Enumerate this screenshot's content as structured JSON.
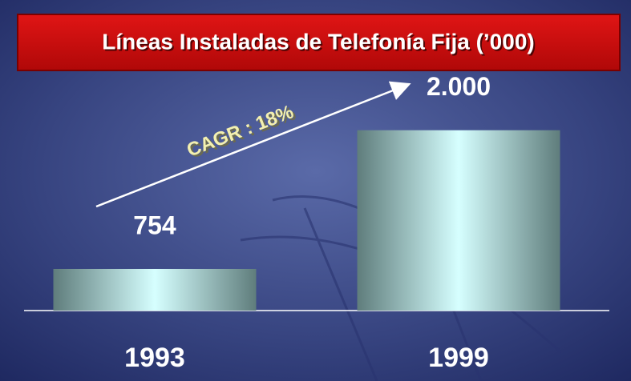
{
  "chart_data": {
    "type": "bar",
    "title": "Líneas Instaladas de Telefonía Fija (’000)",
    "annotation": "CAGR : 18%",
    "categories": [
      "1993",
      "1999"
    ],
    "values": [
      754,
      2000
    ],
    "value_labels": [
      "754",
      "2.000"
    ],
    "ylim": [
      380,
      2350
    ]
  }
}
